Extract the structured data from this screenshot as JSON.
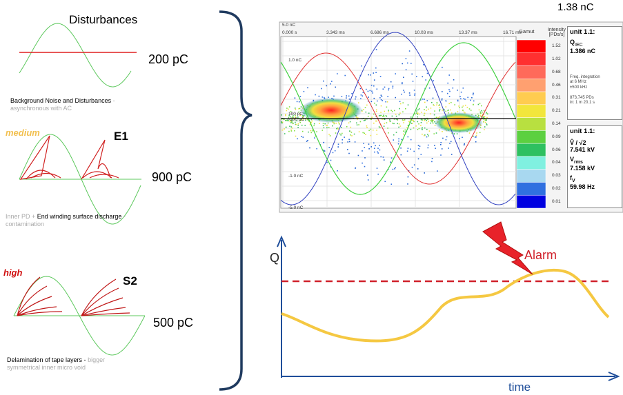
{
  "left": {
    "title": "Disturbances",
    "panels": [
      {
        "value": "200 pC",
        "caption": [
          {
            "text": "Background Noise and Disturbances",
            "strong": true
          },
          {
            "text": "- asynchronous with AC",
            "strong": false
          }
        ]
      },
      {
        "level": "medium",
        "code": "E1",
        "value": "900 pC",
        "caption": [
          {
            "text": "Inner PD +",
            "strong": false
          },
          {
            "text": "End winding surface discharge",
            "strong": true
          },
          {
            "text": "- contamination",
            "strong": false
          }
        ]
      },
      {
        "level": "high",
        "code": "S2",
        "value": "500 pC",
        "caption": [
          {
            "text": "Delamination of tape layers -",
            "strong": true
          },
          {
            "text": "bigger symmetrical inner micro void",
            "strong": false
          }
        ]
      }
    ]
  },
  "scope": {
    "charge_label": "1.38 nC",
    "time_labels": [
      "0.000 s",
      "3.343 ms",
      "6.686 ms",
      "10.03 ms",
      "13.37 ms",
      "16.71 ms"
    ],
    "charge_labels": [
      "5.0 nC",
      "1.0 nC",
      "100 pC",
      "-100 pC",
      "-1.0 nC",
      "-5.0 nC"
    ],
    "gamut_title": "Gamut",
    "intensity_title": [
      "Intensity",
      "[PDs/s]"
    ],
    "gamut": [
      {
        "label": "1.52",
        "color": "#ff0000"
      },
      {
        "label": "1.02",
        "color": "#ff3030"
      },
      {
        "label": "0.68",
        "color": "#ff6a5a"
      },
      {
        "label": "0.46",
        "color": "#ffa070"
      },
      {
        "label": "0.31",
        "color": "#ffcc50"
      },
      {
        "label": "0.21",
        "color": "#f2e63c"
      },
      {
        "label": "0.14",
        "color": "#b8e040"
      },
      {
        "label": "0.09",
        "color": "#5cd040"
      },
      {
        "label": "0.06",
        "color": "#2ec060"
      },
      {
        "label": "0.04",
        "color": "#80f0e0"
      },
      {
        "label": "0.03",
        "color": "#a8d8f0"
      },
      {
        "label": "0.02",
        "color": "#3070e0"
      },
      {
        "label": "0.01",
        "color": "#0000e0"
      }
    ],
    "info": {
      "unit": "unit 1.1:",
      "q": "Q",
      "q_sub": "IEC",
      "q_value": "1.386 nC",
      "notes": [
        "Freq. integration",
        "at 6 MHz",
        "±500 kHz",
        "",
        "873,745 PDs",
        "in: 1 m 20.1 s"
      ],
      "unit2": "unit 1.1:",
      "v_peak": "V̂ / √2",
      "v_peak_value": "7.541 kV",
      "v_rms": "V",
      "v_rms_sub": "rms",
      "v_rms_value": "7.158 kV",
      "f": "f",
      "f_sub": "V",
      "f_value": "59.98 Hz"
    }
  },
  "trend": {
    "y_label": "Q",
    "x_label": "time",
    "alarm": "Alarm"
  }
}
